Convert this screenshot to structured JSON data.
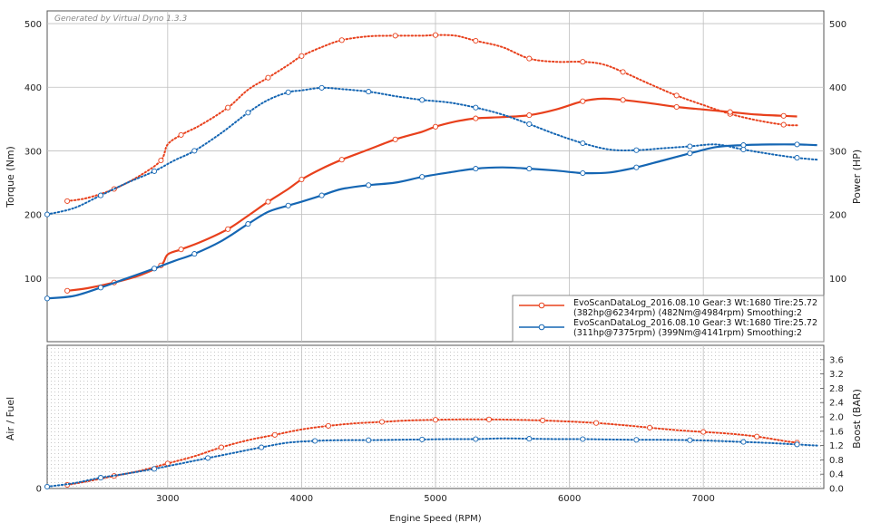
{
  "watermark": "Generated by Virtual Dyno 1.3.3",
  "chart_data": [
    {
      "type": "line",
      "panel": "top",
      "ylabel_left": "Torque (Nm)",
      "ylabel_right": "Power (HP)",
      "xlim": [
        2100,
        7900
      ],
      "ylim": [
        0,
        520
      ],
      "x_ticks": [
        3000,
        4000,
        5000,
        6000,
        7000
      ],
      "x_tick_labels": [
        "3000",
        "4000",
        "5000",
        "6000",
        "7000"
      ],
      "y_ticks": [
        100,
        200,
        300,
        400,
        500
      ],
      "y_tick_labels": [
        "100",
        "200",
        "300",
        "400",
        "500"
      ],
      "grid": true,
      "legend_position": "bottom-right",
      "legend": [
        {
          "color": "#e8401c",
          "line1": "EvoScanDataLog_2016.08.10 Gear:3 Wt:1680 Tire:25.72",
          "line2": "(382hp@6234rpm) (482Nm@4984rpm) Smoothing:2"
        },
        {
          "color": "#1566b3",
          "line1": "EvoScanDataLog_2016.08.10 Gear:3 Wt:1680 Tire:25.72",
          "line2": "(311hp@7375rpm) (399Nm@4141rpm) Smoothing:2"
        }
      ],
      "series": [
        {
          "color": "#e8401c",
          "style": "dotted",
          "x": [
            2250,
            2400,
            2600,
            2800,
            2950,
            3000,
            3100,
            3250,
            3450,
            3600,
            3750,
            3900,
            4000,
            4150,
            4300,
            4500,
            4700,
            4900,
            5000,
            5150,
            5300,
            5500,
            5700,
            5900,
            6100,
            6250,
            6400,
            6600,
            6800,
            7000,
            7200,
            7400,
            7600,
            7700
          ],
          "y": [
            221,
            226,
            240,
            262,
            285,
            310,
            325,
            341,
            368,
            396,
            415,
            435,
            449,
            463,
            474,
            480,
            481,
            481,
            482,
            481,
            473,
            463,
            445,
            440,
            440,
            436,
            424,
            405,
            387,
            372,
            358,
            348,
            341,
            340
          ]
        },
        {
          "color": "#e8401c",
          "style": "solid",
          "x": [
            2250,
            2400,
            2600,
            2800,
            2950,
            3000,
            3100,
            3250,
            3450,
            3600,
            3750,
            3900,
            4000,
            4150,
            4300,
            4500,
            4700,
            4900,
            5000,
            5150,
            5300,
            5500,
            5700,
            5900,
            6100,
            6250,
            6400,
            6600,
            6800,
            7000,
            7200,
            7400,
            7600,
            7700
          ],
          "y": [
            80,
            84,
            93,
            105,
            120,
            137,
            145,
            157,
            177,
            198,
            220,
            240,
            255,
            272,
            286,
            302,
            318,
            330,
            338,
            346,
            351,
            353,
            356,
            365,
            378,
            382,
            380,
            375,
            369,
            365,
            361,
            357,
            355,
            354
          ]
        },
        {
          "color": "#1566b3",
          "style": "dotted",
          "x": [
            2100,
            2300,
            2500,
            2700,
            2900,
            3050,
            3200,
            3400,
            3600,
            3750,
            3900,
            4000,
            4150,
            4300,
            4500,
            4700,
            4900,
            5100,
            5300,
            5500,
            5700,
            5900,
            6100,
            6300,
            6500,
            6700,
            6900,
            7100,
            7300,
            7500,
            7700,
            7850
          ],
          "y": [
            200,
            210,
            230,
            250,
            268,
            285,
            300,
            328,
            360,
            380,
            392,
            395,
            399,
            397,
            393,
            386,
            380,
            376,
            368,
            357,
            342,
            326,
            312,
            302,
            301,
            304,
            307,
            310,
            302,
            295,
            289,
            286
          ]
        },
        {
          "color": "#1566b3",
          "style": "solid",
          "x": [
            2100,
            2300,
            2500,
            2700,
            2900,
            3050,
            3200,
            3400,
            3600,
            3750,
            3900,
            4000,
            4150,
            4300,
            4500,
            4700,
            4900,
            5100,
            5300,
            5500,
            5700,
            5900,
            6100,
            6300,
            6500,
            6700,
            6900,
            7100,
            7300,
            7500,
            7700,
            7850
          ],
          "y": [
            68,
            72,
            85,
            100,
            115,
            127,
            138,
            158,
            185,
            204,
            214,
            220,
            230,
            240,
            246,
            250,
            259,
            266,
            272,
            274,
            272,
            269,
            265,
            266,
            274,
            285,
            296,
            306,
            309,
            310,
            310,
            309
          ]
        }
      ]
    },
    {
      "type": "line",
      "panel": "bottom",
      "ylabel_left": "Air / Fuel",
      "ylabel_right": "Boost (BAR)",
      "xlabel": "Engine Speed (RPM)",
      "xlim": [
        2100,
        7900
      ],
      "ylim": [
        0,
        4.0
      ],
      "y_ticks_right": [
        0.0,
        0.4,
        0.8,
        1.2,
        1.6,
        2.0,
        2.4,
        2.8,
        3.2,
        3.6
      ],
      "y_tick_labels_right": [
        "0.0",
        "0.4",
        "0.8",
        "1.2",
        "1.6",
        "2.0",
        "2.4",
        "2.8",
        "3.2",
        "3.6"
      ],
      "left_tick": [
        0
      ],
      "left_tick_labels": [
        "0"
      ],
      "grid": true,
      "series": [
        {
          "color": "#e8401c",
          "style": "dotted",
          "x": [
            2250,
            2400,
            2600,
            2800,
            3000,
            3200,
            3400,
            3600,
            3800,
            4000,
            4200,
            4400,
            4600,
            4800,
            5000,
            5200,
            5400,
            5600,
            5800,
            6000,
            6200,
            6400,
            6600,
            6800,
            7000,
            7200,
            7400,
            7600,
            7700
          ],
          "y": [
            0.1,
            0.2,
            0.35,
            0.5,
            0.7,
            0.9,
            1.15,
            1.35,
            1.5,
            1.65,
            1.75,
            1.82,
            1.86,
            1.9,
            1.92,
            1.93,
            1.93,
            1.92,
            1.9,
            1.87,
            1.83,
            1.77,
            1.7,
            1.63,
            1.58,
            1.53,
            1.45,
            1.33,
            1.28
          ]
        },
        {
          "color": "#1566b3",
          "style": "dotted",
          "x": [
            2100,
            2300,
            2500,
            2700,
            2900,
            3100,
            3300,
            3500,
            3700,
            3900,
            4100,
            4300,
            4500,
            4700,
            4900,
            5100,
            5300,
            5500,
            5700,
            5900,
            6100,
            6300,
            6500,
            6700,
            6900,
            7100,
            7300,
            7500,
            7700,
            7850
          ],
          "y": [
            0.05,
            0.15,
            0.3,
            0.42,
            0.55,
            0.7,
            0.85,
            1.0,
            1.15,
            1.28,
            1.33,
            1.35,
            1.35,
            1.36,
            1.37,
            1.38,
            1.38,
            1.4,
            1.39,
            1.38,
            1.38,
            1.37,
            1.36,
            1.36,
            1.35,
            1.33,
            1.3,
            1.27,
            1.23,
            1.2
          ]
        }
      ]
    }
  ]
}
